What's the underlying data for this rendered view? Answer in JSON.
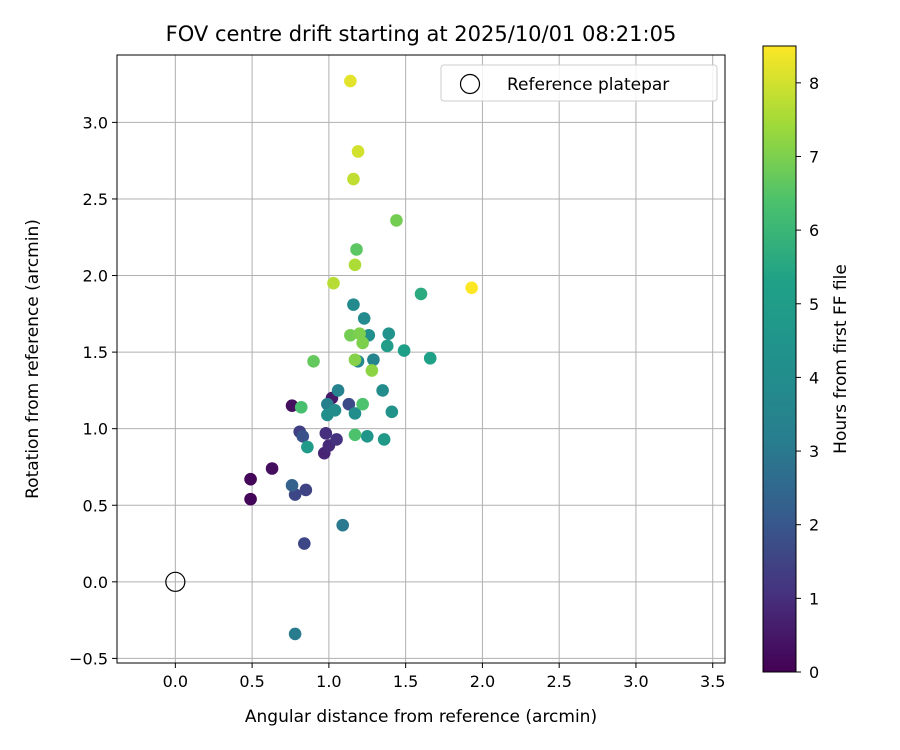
{
  "chart_data": {
    "type": "scatter",
    "title": "FOV centre drift starting at 2025/10/01 08:21:05",
    "xlabel": "Angular distance from reference (arcmin)",
    "ylabel": "Rotation from reference (arcmin)",
    "xlim": [
      -0.38,
      3.58
    ],
    "ylim": [
      -0.53,
      3.44
    ],
    "xticks": [
      0.0,
      0.5,
      1.0,
      1.5,
      2.0,
      2.5,
      3.0,
      3.5
    ],
    "xtick_labels": [
      "0.0",
      "0.5",
      "1.0",
      "1.5",
      "2.0",
      "2.5",
      "3.0",
      "3.5"
    ],
    "yticks": [
      -0.5,
      0.0,
      0.5,
      1.0,
      1.5,
      2.0,
      2.5,
      3.0
    ],
    "ytick_labels": [
      "−0.5",
      "0.0",
      "0.5",
      "1.0",
      "1.5",
      "2.0",
      "2.5",
      "3.0"
    ],
    "grid": true,
    "legend": {
      "position": "top-right",
      "entries": [
        "Reference platepar"
      ]
    },
    "reference_point": {
      "x": 0.0,
      "y": 0.0,
      "label": "Reference platepar"
    },
    "colorbar": {
      "label": "Hours from first FF file",
      "range": [
        0,
        8.5
      ],
      "ticks": [
        0,
        1,
        2,
        3,
        4,
        5,
        6,
        7,
        8
      ],
      "tick_labels": [
        "0",
        "1",
        "2",
        "3",
        "4",
        "5",
        "6",
        "7",
        "8"
      ],
      "colormap": "viridis"
    },
    "series": [
      {
        "name": "Drift points",
        "points": [
          {
            "x": 0.49,
            "y": 0.54,
            "h": 0.1
          },
          {
            "x": 0.49,
            "y": 0.67,
            "h": 0.1
          },
          {
            "x": 0.63,
            "y": 0.74,
            "h": 0.3
          },
          {
            "x": 0.76,
            "y": 1.15,
            "h": 0.3
          },
          {
            "x": 1.02,
            "y": 1.2,
            "h": 0.5
          },
          {
            "x": 0.97,
            "y": 0.84,
            "h": 0.8
          },
          {
            "x": 1.0,
            "y": 0.89,
            "h": 0.9
          },
          {
            "x": 0.98,
            "y": 0.97,
            "h": 1.0
          },
          {
            "x": 1.05,
            "y": 0.93,
            "h": 1.1
          },
          {
            "x": 0.81,
            "y": 0.98,
            "h": 1.4
          },
          {
            "x": 0.85,
            "y": 0.6,
            "h": 1.5
          },
          {
            "x": 0.78,
            "y": 0.57,
            "h": 1.6
          },
          {
            "x": 0.84,
            "y": 0.25,
            "h": 1.6
          },
          {
            "x": 0.83,
            "y": 0.95,
            "h": 1.9
          },
          {
            "x": 1.13,
            "y": 1.16,
            "h": 1.7
          },
          {
            "x": 0.76,
            "y": 0.63,
            "h": 2.3
          },
          {
            "x": 1.09,
            "y": 0.37,
            "h": 3.0
          },
          {
            "x": 0.78,
            "y": -0.34,
            "h": 3.1
          },
          {
            "x": 0.99,
            "y": 1.16,
            "h": 3.2
          },
          {
            "x": 1.06,
            "y": 1.25,
            "h": 3.4
          },
          {
            "x": 1.29,
            "y": 1.45,
            "h": 3.5
          },
          {
            "x": 1.19,
            "y": 1.44,
            "h": 3.7
          },
          {
            "x": 1.16,
            "y": 1.81,
            "h": 3.9
          },
          {
            "x": 1.23,
            "y": 1.72,
            "h": 3.9
          },
          {
            "x": 1.35,
            "y": 1.25,
            "h": 4.0
          },
          {
            "x": 1.04,
            "y": 1.12,
            "h": 4.0
          },
          {
            "x": 1.17,
            "y": 1.1,
            "h": 4.1
          },
          {
            "x": 0.99,
            "y": 1.09,
            "h": 4.1
          },
          {
            "x": 1.26,
            "y": 1.61,
            "h": 4.2
          },
          {
            "x": 1.39,
            "y": 1.62,
            "h": 4.3
          },
          {
            "x": 1.41,
            "y": 1.11,
            "h": 4.4
          },
          {
            "x": 1.25,
            "y": 0.95,
            "h": 4.6
          },
          {
            "x": 1.36,
            "y": 0.93,
            "h": 4.8
          },
          {
            "x": 0.86,
            "y": 0.88,
            "h": 4.9
          },
          {
            "x": 1.38,
            "y": 1.54,
            "h": 5.0
          },
          {
            "x": 1.49,
            "y": 1.51,
            "h": 5.1
          },
          {
            "x": 1.66,
            "y": 1.46,
            "h": 5.3
          },
          {
            "x": 1.6,
            "y": 1.88,
            "h": 5.6
          },
          {
            "x": 0.82,
            "y": 1.14,
            "h": 6.3
          },
          {
            "x": 1.22,
            "y": 1.16,
            "h": 6.4
          },
          {
            "x": 1.17,
            "y": 0.96,
            "h": 6.4
          },
          {
            "x": 0.9,
            "y": 1.44,
            "h": 6.7
          },
          {
            "x": 1.18,
            "y": 2.17,
            "h": 6.6
          },
          {
            "x": 1.44,
            "y": 2.36,
            "h": 6.9
          },
          {
            "x": 1.14,
            "y": 1.61,
            "h": 6.9
          },
          {
            "x": 1.2,
            "y": 1.62,
            "h": 7.0
          },
          {
            "x": 1.22,
            "y": 1.56,
            "h": 7.0
          },
          {
            "x": 1.17,
            "y": 1.45,
            "h": 7.1
          },
          {
            "x": 1.28,
            "y": 1.38,
            "h": 7.2
          },
          {
            "x": 1.17,
            "y": 2.07,
            "h": 7.6
          },
          {
            "x": 1.03,
            "y": 1.95,
            "h": 7.7
          },
          {
            "x": 1.16,
            "y": 2.63,
            "h": 7.8
          },
          {
            "x": 1.19,
            "y": 2.81,
            "h": 8.0
          },
          {
            "x": 1.14,
            "y": 3.27,
            "h": 8.2
          },
          {
            "x": 1.93,
            "y": 1.92,
            "h": 8.5
          }
        ]
      }
    ]
  }
}
